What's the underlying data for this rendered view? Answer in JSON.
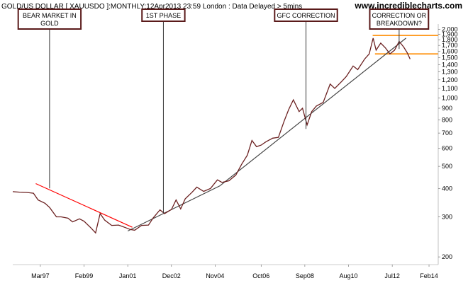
{
  "header": {
    "title": "GOLD/US DOLLAR [ XAUUSDO ]:MONTHLY:12Apr2013 23:59 London : Data Delayed > 5mins",
    "brand": "www.incrediblecharts.com"
  },
  "chart_data": {
    "type": "line",
    "title": "GOLD/US DOLLAR [ XAUUSDO ]:MONTHLY:12Apr2013 23:59 London : Data Delayed > 5mins",
    "xlabel": "",
    "ylabel": "",
    "yscale": "log",
    "xlim": [
      1996.0,
      2014.5
    ],
    "ylim": [
      185,
      2050
    ],
    "x_ticks": [
      {
        "x": 1997.2,
        "label": "Mar97"
      },
      {
        "x": 1999.1,
        "label": "Feb99"
      },
      {
        "x": 2001.0,
        "label": "Jan01"
      },
      {
        "x": 2002.9,
        "label": "Dec02"
      },
      {
        "x": 2004.8,
        "label": "Nov04"
      },
      {
        "x": 2006.8,
        "label": "Oct06"
      },
      {
        "x": 2008.7,
        "label": "Sep08"
      },
      {
        "x": 2010.6,
        "label": "Aug10"
      },
      {
        "x": 2012.5,
        "label": "Jul12"
      },
      {
        "x": 2014.1,
        "label": "Feb14"
      }
    ],
    "y_ticks": [
      {
        "value": 2000,
        "label": "2,000"
      },
      {
        "value": 1900,
        "label": "1,900"
      },
      {
        "value": 1800,
        "label": "1,800"
      },
      {
        "value": 1700,
        "label": "1,700"
      },
      {
        "value": 1600,
        "label": "1,600"
      },
      {
        "value": 1500,
        "label": "1,500"
      },
      {
        "value": 1400,
        "label": "1,400"
      },
      {
        "value": 1300,
        "label": "1,300"
      },
      {
        "value": 1200,
        "label": "1,200"
      },
      {
        "value": 1100,
        "label": "1,100"
      },
      {
        "value": 1000,
        "label": "1,000"
      },
      {
        "value": 900,
        "label": "900"
      },
      {
        "value": 800,
        "label": "800"
      },
      {
        "value": 700,
        "label": "700"
      },
      {
        "value": 600,
        "label": "600"
      },
      {
        "value": 500,
        "label": "500"
      },
      {
        "value": 400,
        "label": "400"
      },
      {
        "value": 300,
        "label": "300"
      },
      {
        "value": 200,
        "label": "200"
      }
    ],
    "series": [
      {
        "color": "#6b2020",
        "points": [
          [
            1996.0,
            387
          ],
          [
            1996.3,
            385
          ],
          [
            1996.6,
            384
          ],
          [
            1996.9,
            381
          ],
          [
            1997.1,
            356
          ],
          [
            1997.4,
            344
          ],
          [
            1997.6,
            330
          ],
          [
            1997.9,
            300
          ],
          [
            1998.1,
            300
          ],
          [
            1998.4,
            296
          ],
          [
            1998.6,
            285
          ],
          [
            1998.9,
            294
          ],
          [
            1999.1,
            287
          ],
          [
            1999.4,
            268
          ],
          [
            1999.6,
            255
          ],
          [
            1999.8,
            310
          ],
          [
            2000.0,
            290
          ],
          [
            2000.3,
            275
          ],
          [
            2000.6,
            276
          ],
          [
            2000.9,
            269
          ],
          [
            2001.1,
            264
          ],
          [
            2001.3,
            262
          ],
          [
            2001.6,
            275
          ],
          [
            2001.9,
            276
          ],
          [
            2002.1,
            296
          ],
          [
            2002.4,
            322
          ],
          [
            2002.6,
            310
          ],
          [
            2002.9,
            323
          ],
          [
            2003.1,
            356
          ],
          [
            2003.3,
            325
          ],
          [
            2003.5,
            360
          ],
          [
            2003.8,
            385
          ],
          [
            2004.0,
            405
          ],
          [
            2004.3,
            388
          ],
          [
            2004.6,
            400
          ],
          [
            2004.9,
            436
          ],
          [
            2005.1,
            425
          ],
          [
            2005.4,
            432
          ],
          [
            2005.7,
            458
          ],
          [
            2005.95,
            510
          ],
          [
            2006.2,
            560
          ],
          [
            2006.4,
            650
          ],
          [
            2006.6,
            610
          ],
          [
            2006.8,
            620
          ],
          [
            2007.0,
            640
          ],
          [
            2007.3,
            665
          ],
          [
            2007.55,
            670
          ],
          [
            2007.8,
            790
          ],
          [
            2008.0,
            890
          ],
          [
            2008.2,
            980
          ],
          [
            2008.45,
            870
          ],
          [
            2008.6,
            900
          ],
          [
            2008.8,
            760
          ],
          [
            2009.0,
            870
          ],
          [
            2009.2,
            920
          ],
          [
            2009.5,
            955
          ],
          [
            2009.8,
            1150
          ],
          [
            2010.0,
            1100
          ],
          [
            2010.3,
            1180
          ],
          [
            2010.5,
            1240
          ],
          [
            2010.8,
            1380
          ],
          [
            2011.0,
            1330
          ],
          [
            2011.3,
            1480
          ],
          [
            2011.5,
            1560
          ],
          [
            2011.67,
            1830
          ],
          [
            2011.8,
            1620
          ],
          [
            2012.0,
            1740
          ],
          [
            2012.2,
            1660
          ],
          [
            2012.4,
            1560
          ],
          [
            2012.6,
            1620
          ],
          [
            2012.8,
            1770
          ],
          [
            2013.0,
            1670
          ],
          [
            2013.15,
            1580
          ],
          [
            2013.28,
            1480
          ]
        ]
      }
    ],
    "annotations": [
      {
        "lines": [
          "BEAR MARKET IN",
          "GOLD"
        ],
        "x": 1997.6,
        "y_bottom": 400
      },
      {
        "lines": [
          "1ST PHASE"
        ],
        "x": 2002.55,
        "y_bottom": 312
      },
      {
        "lines": [
          "GFC CORRECTION"
        ],
        "x": 2008.75,
        "y_bottom": 730
      },
      {
        "lines": [
          "CORRECTION OR",
          "BREAKDOWN?"
        ],
        "x": 2012.8,
        "y_bottom": 1640
      }
    ],
    "trendlines": [
      {
        "color": "#ff0000",
        "points": [
          [
            1997.0,
            420
          ],
          [
            2001.2,
            270
          ]
        ]
      },
      {
        "color": "#444444",
        "points": [
          [
            2001.0,
            260
          ],
          [
            2005.0,
            410
          ],
          [
            2013.1,
            1830
          ]
        ]
      }
    ],
    "bands": {
      "color": "#ff8c00",
      "upper": {
        "y": 1880,
        "x_start": 2011.65,
        "x_end": 2014.5
      },
      "lower": {
        "y": 1560,
        "x_start": 2011.75,
        "x_end": 2014.5
      }
    },
    "grid": false
  }
}
